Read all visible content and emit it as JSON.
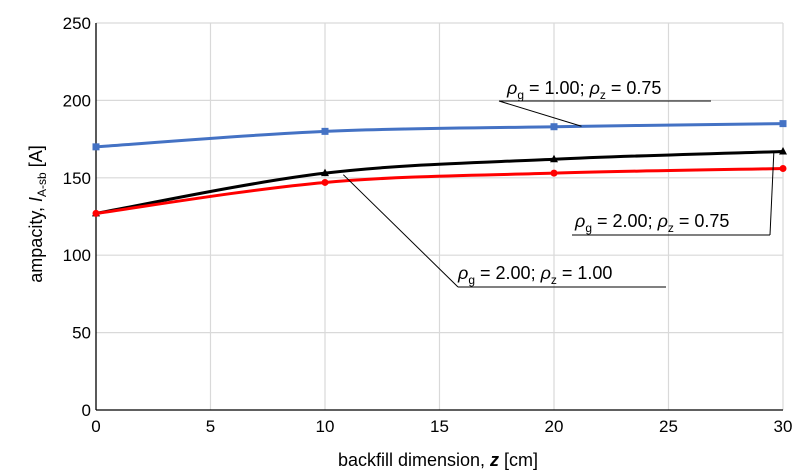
{
  "chart_data": {
    "type": "line",
    "xlabel": {
      "prefix": "backfill dimension, ",
      "var": "z",
      "suffix": " [cm]"
    },
    "ylabel": {
      "prefix": "ampacity, ",
      "var": "I",
      "sub": "A-sb",
      "suffix": " [A]"
    },
    "xlim": [
      0,
      30
    ],
    "ylim": [
      0,
      250
    ],
    "xticks": [
      "0",
      "5",
      "10",
      "15",
      "20",
      "25",
      "30"
    ],
    "yticks": [
      "0",
      "50",
      "100",
      "150",
      "200",
      "250"
    ],
    "grid": true,
    "series": [
      {
        "color": "#4472C4",
        "marker": "square",
        "x": [
          0,
          10,
          20,
          30
        ],
        "y": [
          170,
          180,
          183,
          185
        ],
        "label": {
          "g": "1.00",
          "z": "0.75"
        }
      },
      {
        "color": "#000000",
        "marker": "triangle",
        "x": [
          0,
          10,
          20,
          30
        ],
        "y": [
          127,
          153,
          162,
          167
        ],
        "label": {
          "g": "2.00",
          "z": "0.75"
        }
      },
      {
        "color": "#FF0000",
        "marker": "circle",
        "x": [
          0,
          10,
          20,
          30
        ],
        "y": [
          127,
          147,
          153,
          156
        ],
        "label": {
          "g": "2.00",
          "z": "1.00"
        }
      }
    ]
  }
}
